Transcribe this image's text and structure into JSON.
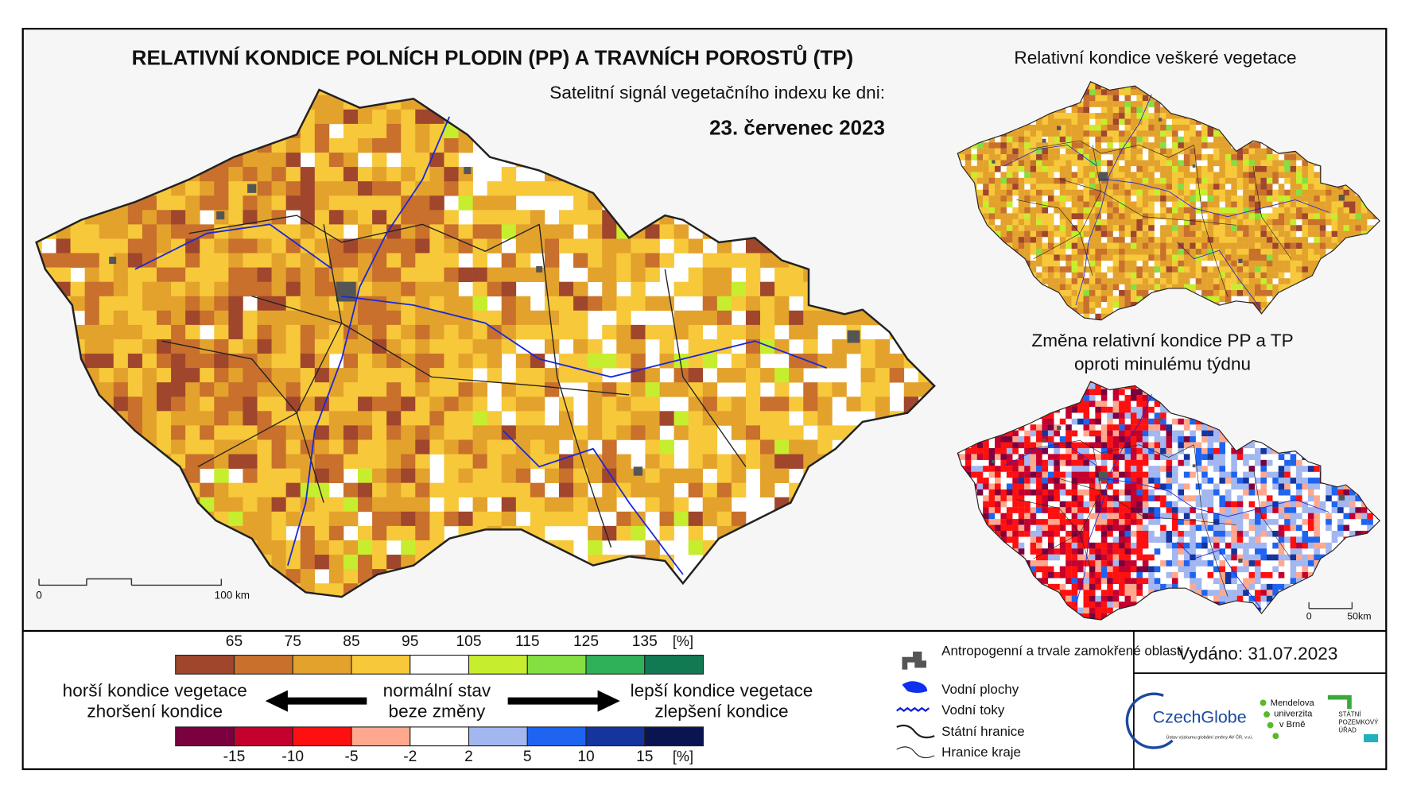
{
  "title": "RELATIVNÍ KONDICE POLNÍCH PLODIN (PP) A TRAVNÍCH POROSTŮ (TP)",
  "subtitle": "Satelitní signál vegetačního indexu ke dni:",
  "date": "23. červenec 2023",
  "main_map": {
    "scale_labels": [
      "0",
      "100 km"
    ]
  },
  "inset_top": {
    "title": "Relativní kondice veškeré vegetace"
  },
  "inset_bottom": {
    "title_lines": [
      "Změna relativní kondice PP a TP",
      "oproti minulému týdnu"
    ],
    "scale_labels": [
      "0",
      "50km"
    ]
  },
  "legend": {
    "condition": {
      "ticks": [
        "65",
        "75",
        "85",
        "95",
        "105",
        "115",
        "125",
        "135"
      ],
      "unit": "[%]",
      "colors": [
        "#a0462c",
        "#c8702c",
        "#e3a22c",
        "#f7c83a",
        "#ffffff",
        "#c6ee2e",
        "#84e040",
        "#2fb257",
        "#117a52"
      ]
    },
    "change": {
      "ticks": [
        "-15",
        "-10",
        "-5",
        "-2",
        "2",
        "5",
        "10",
        "15"
      ],
      "unit": "[%]",
      "colors": [
        "#7a0040",
        "#c4002e",
        "#ff1010",
        "#ffa88e",
        "#ffffff",
        "#a2b6f0",
        "#1e64f0",
        "#14349e",
        "#0a1450"
      ]
    },
    "left_lines": [
      "horší kondice vegetace",
      "zhoršení kondice"
    ],
    "center_lines": [
      "normální stav",
      "beze změny"
    ],
    "right_lines": [
      "lepší kondice vegetace",
      "zlepšení kondice"
    ]
  },
  "map_legend": {
    "items": [
      "Antropogenní a trvale zamokřené oblasti",
      "Vodní plochy",
      "Vodní toky",
      "Státní hranice",
      "Hranice kraje"
    ]
  },
  "issued": "Vydáno: 31.07.2023",
  "logos": {
    "czechglobe": "CzechGlobe",
    "czechglobe_sub": "Ústav výzkumu globální změny AV ČR, v.v.i.",
    "mendelu_lines": [
      "Mendelova",
      "univerzita",
      "v Brně"
    ],
    "spu_lines": [
      "STÁTNÍ",
      "POZEMKOVÝ",
      "ÚŘAD"
    ]
  }
}
